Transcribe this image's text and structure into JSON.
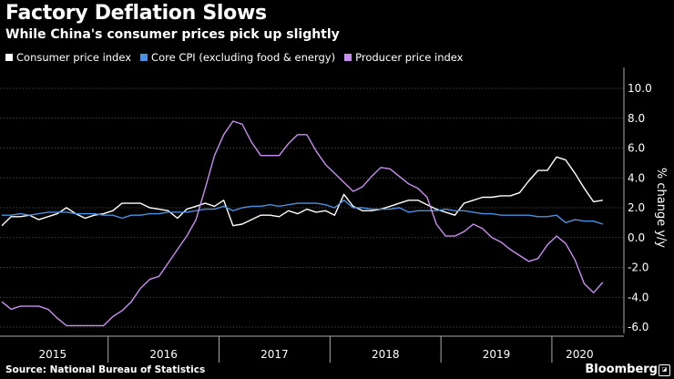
{
  "chart_data": {
    "type": "line",
    "title": "Factory Deflation Slows",
    "subtitle": "While China's consumer prices pick up slightly",
    "ylabel": "% change y/y",
    "ylim": [
      -6.0,
      10.0
    ],
    "yticks": [
      "10.0",
      "8.0",
      "6.0",
      "4.0",
      "2.0",
      "0.0",
      "-2.0",
      "-4.0",
      "-6.0"
    ],
    "year_labels": [
      "2015",
      "2016",
      "2017",
      "2018",
      "2019",
      "2020"
    ],
    "x_start": "2015-01",
    "x_end": "2020-05",
    "series": [
      {
        "name": "Consumer price index",
        "color": "#ffffff",
        "values": [
          0.8,
          1.4,
          1.4,
          1.5,
          1.2,
          1.4,
          1.6,
          2.0,
          1.6,
          1.3,
          1.5,
          1.6,
          1.8,
          2.3,
          2.3,
          2.3,
          2.0,
          1.9,
          1.8,
          1.3,
          1.9,
          2.1,
          2.3,
          2.1,
          2.5,
          0.8,
          0.9,
          1.2,
          1.5,
          1.5,
          1.4,
          1.8,
          1.6,
          1.9,
          1.7,
          1.8,
          1.5,
          2.9,
          2.1,
          1.8,
          1.8,
          1.9,
          2.1,
          2.3,
          2.5,
          2.5,
          2.2,
          1.9,
          1.7,
          1.5,
          2.3,
          2.5,
          2.7,
          2.7,
          2.8,
          2.8,
          3.0,
          3.8,
          4.5,
          4.5,
          5.4,
          5.2,
          4.3,
          3.3,
          2.4,
          2.5
        ]
      },
      {
        "name": "Core CPI (excluding food & energy)",
        "color": "#4a90e2",
        "values": [
          1.5,
          1.5,
          1.6,
          1.5,
          1.6,
          1.7,
          1.7,
          1.7,
          1.6,
          1.6,
          1.6,
          1.5,
          1.5,
          1.3,
          1.5,
          1.5,
          1.6,
          1.6,
          1.7,
          1.7,
          1.7,
          1.8,
          1.9,
          1.9,
          2.1,
          1.8,
          2.0,
          2.1,
          2.1,
          2.2,
          2.1,
          2.2,
          2.3,
          2.3,
          2.3,
          2.2,
          2.0,
          2.5,
          2.0,
          2.0,
          1.9,
          1.9,
          1.9,
          2.0,
          1.7,
          1.8,
          1.8,
          1.8,
          1.9,
          1.8,
          1.8,
          1.7,
          1.6,
          1.6,
          1.5,
          1.5,
          1.5,
          1.5,
          1.4,
          1.4,
          1.5,
          1.0,
          1.2,
          1.1,
          1.1,
          0.9
        ]
      },
      {
        "name": "Producer price index",
        "color": "#c78ef0",
        "values": [
          -4.3,
          -4.8,
          -4.6,
          -4.6,
          -4.6,
          -4.8,
          -5.4,
          -5.9,
          -5.9,
          -5.9,
          -5.9,
          -5.9,
          -5.3,
          -4.9,
          -4.3,
          -3.4,
          -2.8,
          -2.6,
          -1.7,
          -0.8,
          0.1,
          1.2,
          3.3,
          5.5,
          6.9,
          7.8,
          7.6,
          6.4,
          5.5,
          5.5,
          5.5,
          6.3,
          6.9,
          6.9,
          5.8,
          4.9,
          4.3,
          3.7,
          3.1,
          3.4,
          4.1,
          4.7,
          4.6,
          4.1,
          3.6,
          3.3,
          2.7,
          0.9,
          0.1,
          0.1,
          0.4,
          0.9,
          0.6,
          0.0,
          -0.3,
          -0.8,
          -1.2,
          -1.6,
          -1.4,
          -0.5,
          0.1,
          -0.4,
          -1.5,
          -3.1,
          -3.7,
          -3.0
        ]
      }
    ]
  },
  "legend": {
    "cpi": "Consumer price index",
    "core": "Core CPI (excluding food & energy)",
    "ppi": "Producer price index"
  },
  "footer": {
    "source": "Source: National Bureau of Statistics",
    "brand": "Bloomberg"
  }
}
